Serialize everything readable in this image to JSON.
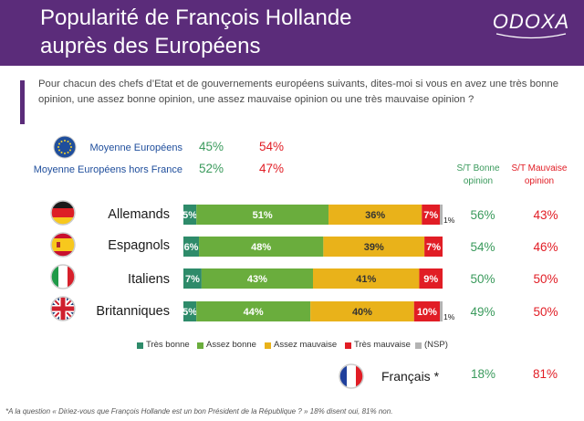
{
  "header": {
    "title_line1": "Popularité de François Hollande",
    "title_line2": "auprès des Européens",
    "logo_text": "ODOXA"
  },
  "question": "Pour chacun des chefs d’Etat et de gouvernements européens suivants, dites-moi si vous en avez une très bonne opinion, une assez bonne opinion, une assez mauvaise opinion ou une très mauvaise opinion ?",
  "averages": [
    {
      "label": "Moyenne Européens",
      "good": "45%",
      "bad": "54%"
    },
    {
      "label": "Moyenne Européens hors France",
      "good": "52%",
      "bad": "47%"
    }
  ],
  "column_headers": {
    "good": "S/T Bonne opinion",
    "bad": "S/T Mauvaise opinion"
  },
  "chart_data": {
    "type": "bar",
    "orientation": "horizontal-stacked-100",
    "categories": [
      "Allemands",
      "Espagnols",
      "Italiens",
      "Britanniques"
    ],
    "series": [
      {
        "name": "Très bonne",
        "values": [
          5,
          6,
          7,
          5
        ],
        "labels": [
          "5%",
          "6%",
          "7%",
          "5%"
        ]
      },
      {
        "name": "Assez bonne",
        "values": [
          51,
          48,
          43,
          44
        ],
        "labels": [
          "51%",
          "48%",
          "43%",
          "44%"
        ]
      },
      {
        "name": "Assez mauvaise",
        "values": [
          36,
          39,
          41,
          40
        ],
        "labels": [
          "36%",
          "39%",
          "41%",
          "40%"
        ]
      },
      {
        "name": "Très mauvaise",
        "values": [
          7,
          7,
          9,
          10
        ],
        "labels": [
          "7%",
          "7%",
          "9%",
          "10%"
        ]
      },
      {
        "name": "(NSP)",
        "values": [
          1,
          0,
          0,
          1
        ],
        "labels": [
          "1%",
          "",
          "",
          "1%"
        ]
      }
    ],
    "totals_good": [
      "56%",
      "54%",
      "50%",
      "49%"
    ],
    "totals_bad": [
      "43%",
      "46%",
      "50%",
      "50%"
    ],
    "colors": [
      "#2e8b6a",
      "#6aad3d",
      "#e9b21a",
      "#e11d25",
      "#b3b3b3"
    ],
    "title": "Popularité de François Hollande auprès des Européens"
  },
  "legend": [
    "Très bonne",
    "Assez bonne",
    "Assez mauvaise",
    "Très mauvaise",
    "(NSP)"
  ],
  "france": {
    "label": "Français *",
    "good": "18%",
    "bad": "81%"
  },
  "footnote": "*A la question « Diriez-vous que François Hollande est un bon Président de la République ? »  18% disent oui, 81% non."
}
